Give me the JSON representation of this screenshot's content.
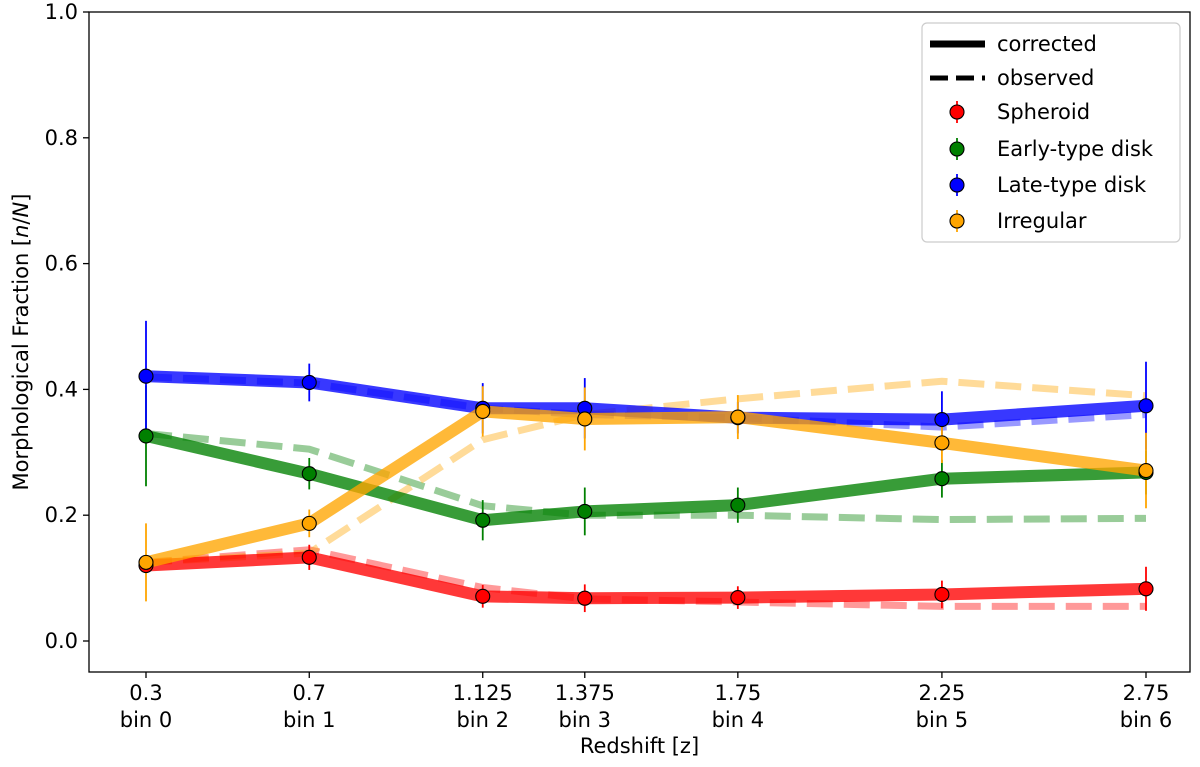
{
  "chart_data": {
    "type": "line",
    "xlabel": "Redshift [z]",
    "ylabel": "Morphological Fraction [n/N]",
    "ylim": [
      0,
      1
    ],
    "yticks": [
      "0.0",
      "0.2",
      "0.4",
      "0.6",
      "0.8",
      "1.0"
    ],
    "x": [
      0.3,
      0.7,
      1.125,
      1.375,
      1.75,
      2.25,
      2.75
    ],
    "xtick_values": [
      "0.3",
      "0.7",
      "1.125",
      "1.375",
      "1.75",
      "2.25",
      "2.75"
    ],
    "xtick_bins": [
      "bin 0",
      "bin 1",
      "bin 2",
      "bin 3",
      "bin 4",
      "bin 5",
      "bin 6"
    ],
    "legend": {
      "placement": "top-right",
      "line_styles": [
        {
          "label": "corrected",
          "style": "solid"
        },
        {
          "label": "observed",
          "style": "dashed"
        }
      ]
    },
    "series": [
      {
        "name": "Spheroid",
        "color": "#ff0000",
        "marker_color": "#ff0000",
        "corrected": [
          0.12,
          0.133,
          0.071,
          0.068,
          0.069,
          0.074,
          0.083
        ],
        "errors": [
          0.012,
          0.02,
          0.018,
          0.022,
          0.018,
          0.022,
          0.035
        ],
        "observed": [
          0.125,
          0.145,
          0.085,
          0.067,
          0.062,
          0.055,
          0.055
        ]
      },
      {
        "name": "Early-type disk",
        "color": "#008000",
        "marker_color": "#008000",
        "corrected": [
          0.326,
          0.266,
          0.192,
          0.206,
          0.216,
          0.258,
          0.268
        ],
        "errors": [
          0.08,
          0.025,
          0.032,
          0.038,
          0.028,
          0.03,
          0.035
        ],
        "observed": [
          0.33,
          0.305,
          0.215,
          0.2,
          0.2,
          0.193,
          0.195
        ]
      },
      {
        "name": "Late-type disk",
        "color": "#0000ff",
        "marker_color": "#0000ff",
        "corrected": [
          0.421,
          0.411,
          0.37,
          0.37,
          0.355,
          0.352,
          0.374
        ],
        "errors": [
          0.088,
          0.03,
          0.04,
          0.048,
          0.025,
          0.045,
          0.07
        ],
        "observed": [
          0.42,
          0.41,
          0.37,
          0.36,
          0.355,
          0.34,
          0.36
        ]
      },
      {
        "name": "Irregular",
        "color": "#ffa500",
        "marker_color": "#ffa500",
        "corrected": [
          0.125,
          0.187,
          0.365,
          0.353,
          0.356,
          0.315,
          0.271
        ],
        "errors": [
          0.062,
          0.022,
          0.04,
          0.05,
          0.035,
          0.032,
          0.06
        ],
        "observed": [
          0.125,
          0.14,
          0.32,
          0.36,
          0.385,
          0.413,
          0.39
        ]
      }
    ]
  }
}
